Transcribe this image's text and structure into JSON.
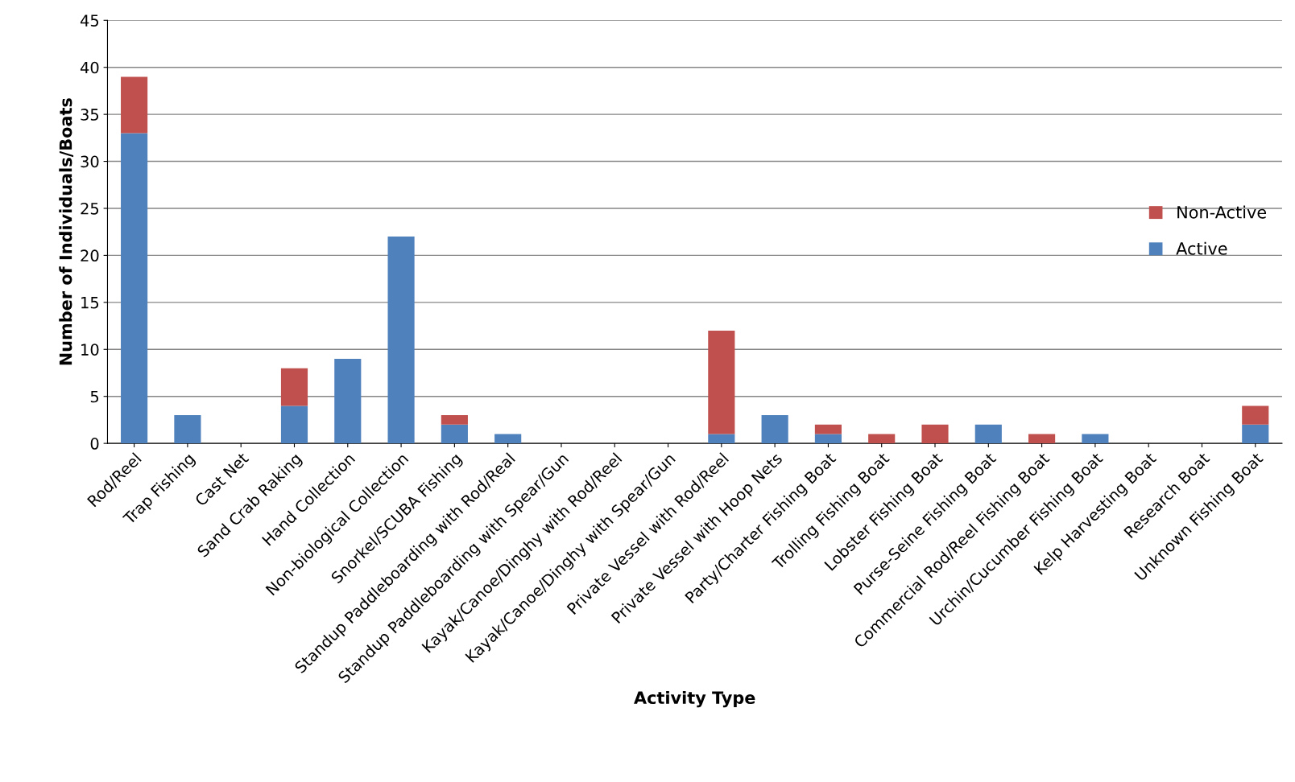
{
  "chart_data": {
    "type": "bar",
    "stacked": true,
    "xlabel": "Activity Type",
    "ylabel": "Number of Individuals/Boats",
    "categories": [
      "Rod/Reel",
      "Trap Fishing",
      "Cast Net",
      "Sand Crab Raking",
      "Hand Collection",
      "Non-biological Collection",
      "Snorkel/SCUBA Fishing",
      "Standup Paddleboarding with Rod/Real",
      "Standup Paddleboarding with Spear/Gun",
      "Kayak/Canoe/Dinghy with Rod/Reel",
      "Kayak/Canoe/Dinghy with Spear/Gun",
      "Private Vessel with Rod/Reel",
      "Private Vessel with Hoop Nets",
      "Party/Charter Fishing Boat",
      "Trolling Fishing Boat",
      "Lobster Fishing Boat",
      "Purse-Seine Fishing Boat",
      "Commercial Rod/Reel Fishing Boat",
      "Urchin/Cucumber Fishing Boat",
      "Kelp Harvesting Boat",
      "Research Boat",
      "Unknown Fishing Boat"
    ],
    "series": [
      {
        "name": "Active",
        "color": "#4f81bd",
        "values": [
          33,
          3,
          0,
          4,
          9,
          22,
          2,
          1,
          0,
          0,
          0,
          1,
          3,
          1,
          0,
          0,
          2,
          0,
          1,
          0,
          0,
          2
        ]
      },
      {
        "name": "Non-Active",
        "color": "#c0504d",
        "values": [
          6,
          0,
          0,
          4,
          0,
          0,
          1,
          0,
          0,
          0,
          0,
          11,
          0,
          1,
          1,
          2,
          0,
          1,
          0,
          0,
          0,
          2
        ]
      }
    ],
    "ylim": [
      0,
      45
    ],
    "yticks": [
      0,
      5,
      10,
      15,
      20,
      25,
      30,
      35,
      40,
      45
    ],
    "grid": "y",
    "legend": "right"
  }
}
